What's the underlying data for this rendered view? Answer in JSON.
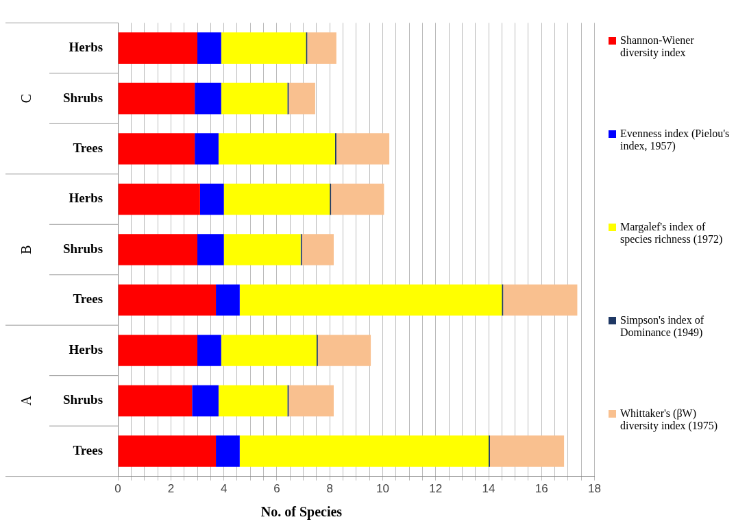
{
  "chart_data": {
    "type": "bar",
    "orientation": "horizontal",
    "stacked": true,
    "xlabel": "No. of Species",
    "categories": [
      "Herbs",
      "Shrubs",
      "Trees",
      "Herbs",
      "Shrubs",
      "Trees",
      "Herbs",
      "Shrubs",
      "Trees"
    ],
    "annotations": [
      "C",
      "B",
      "A"
    ],
    "series": [
      {
        "name": "Shannon-Wiener diversity index",
        "color": "#ff0000",
        "values": [
          3.0,
          2.9,
          2.9,
          3.1,
          3.0,
          3.7,
          3.0,
          2.8,
          3.7
        ]
      },
      {
        "name": "Evenness index (Pielou's index, 1957)",
        "color": "#0000ff",
        "values": [
          0.9,
          1.0,
          0.9,
          0.9,
          1.0,
          0.9,
          0.9,
          1.0,
          0.9
        ]
      },
      {
        "name": "Margalef's index of species richness (1972)",
        "color": "#ffff00",
        "values": [
          3.2,
          2.5,
          4.4,
          4.0,
          2.9,
          9.9,
          3.6,
          2.6,
          9.4
        ]
      },
      {
        "name": "Simpson's index of Dominance (1949)",
        "color": "#1f3864",
        "values": [
          0.05,
          0.05,
          0.05,
          0.05,
          0.05,
          0.05,
          0.05,
          0.05,
          0.05
        ]
      },
      {
        "name": "Whittaker's (βW) diversity index (1975)",
        "color": "#f9c08f",
        "values": [
          1.1,
          1.0,
          2.0,
          2.0,
          1.2,
          2.8,
          2.0,
          1.7,
          2.8
        ]
      }
    ],
    "xlim": [
      0,
      18
    ],
    "xticks": [
      0,
      {
        "value": 0.5,
        "label": null
      },
      {
        "value": 1,
        "label": null
      },
      {
        "value": 1.5,
        "label": null
      },
      2,
      {
        "value": 2.5,
        "label": null
      },
      {
        "value": 3,
        "label": null
      },
      {
        "value": 3.5,
        "label": null
      },
      4,
      {
        "value": 4.5,
        "label": null
      },
      {
        "value": 5,
        "label": null
      },
      {
        "value": 5.5,
        "label": null
      },
      6,
      {
        "value": 6.5,
        "label": null
      },
      {
        "value": 7,
        "label": null
      },
      {
        "value": 7.5,
        "label": null
      },
      8,
      {
        "value": 8.5,
        "label": null
      },
      {
        "value": 9,
        "label": null
      },
      {
        "value": 9.5,
        "label": null
      },
      10,
      {
        "value": 10.5,
        "label": null
      },
      {
        "value": 11,
        "label": null
      },
      {
        "value": 11.5,
        "label": null
      },
      12,
      {
        "value": 12.5,
        "label": null
      },
      {
        "value": 13,
        "label": null
      },
      {
        "value": 13.5,
        "label": null
      },
      14,
      {
        "value": 14.5,
        "label": null
      },
      {
        "value": 15,
        "label": null
      },
      {
        "value": 15.5,
        "label": null
      },
      16,
      {
        "value": 16.5,
        "label": null
      },
      {
        "value": 17,
        "label": null
      },
      {
        "value": 17.5,
        "label": null
      },
      18
    ],
    "grid": "x",
    "legend": "right"
  }
}
